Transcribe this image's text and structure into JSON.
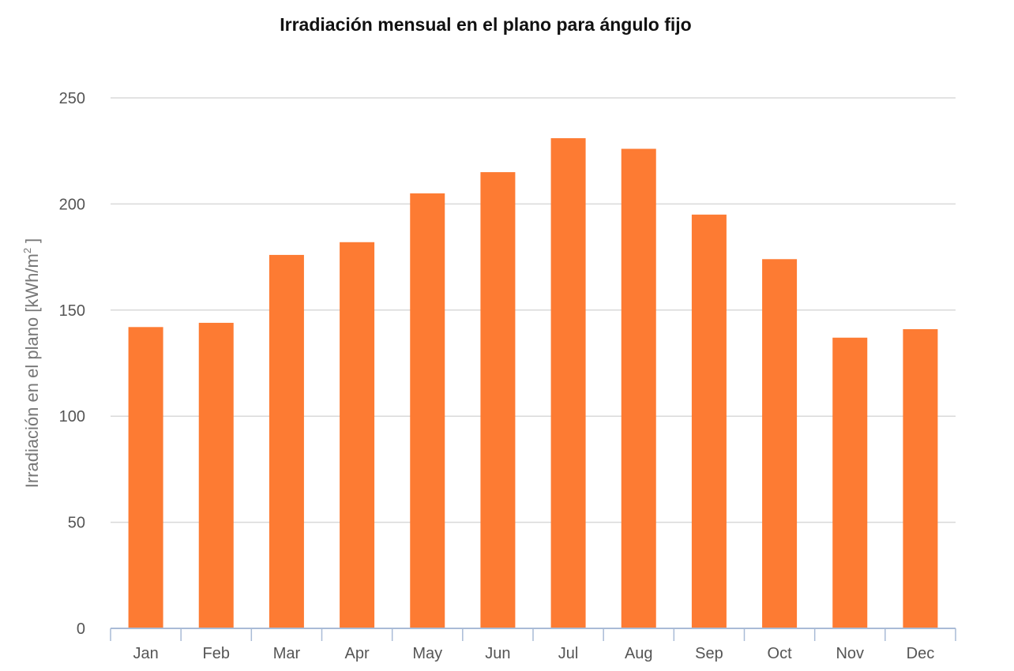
{
  "chart_data": {
    "type": "bar",
    "title": "Irradiación mensual en el plano para ángulo fijo",
    "xlabel": "",
    "ylabel": "Irradiación en el plano [kWh/m",
    "ylabel_superscript": "2",
    "ylabel_suffix": " ]",
    "categories": [
      "Jan",
      "Feb",
      "Mar",
      "Apr",
      "May",
      "Jun",
      "Jul",
      "Aug",
      "Sep",
      "Oct",
      "Nov",
      "Dec"
    ],
    "values": [
      142,
      144,
      176,
      182,
      205,
      215,
      231,
      226,
      195,
      174,
      137,
      141
    ],
    "ylim": [
      0,
      250
    ],
    "yticks": [
      0,
      50,
      100,
      150,
      200,
      250
    ],
    "grid": true,
    "legend": "none",
    "colors": {
      "bar": "#fd7b33",
      "grid": "#d9d9d9",
      "axis": "#a9bbd6"
    }
  }
}
